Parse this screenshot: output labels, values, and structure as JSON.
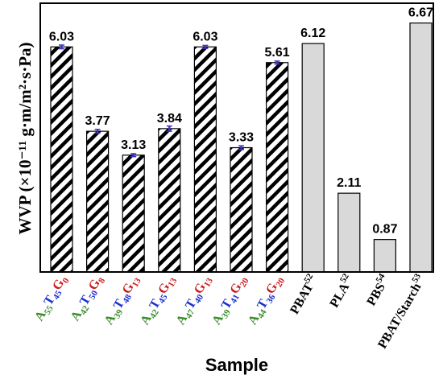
{
  "chart_data": {
    "type": "bar",
    "title": "",
    "ylabel": "WVP (×10⁻¹¹ g·m/m²·s·Pa)",
    "xlabel": "Sample",
    "ylim": [
      0,
      7.2
    ],
    "colors": {
      "A": "#3a8a2a",
      "T": "#1a2fcc",
      "G": "#cc1a1a",
      "error_bar": "#3a33cc",
      "reference_bar": "#d9d9d9",
      "hatch": "#000000"
    },
    "series": [
      {
        "values": [
          6.03,
          3.77,
          3.13,
          3.84,
          6.03,
          3.33,
          5.61,
          6.12,
          2.11,
          0.87,
          6.67
        ],
        "labels": [
          "6.03",
          "3.77",
          "3.13",
          "3.84",
          "6.03",
          "3.33",
          "5.61",
          "6.12",
          "2.11",
          "0.87",
          "6.67"
        ],
        "errors": [
          0.05,
          0.05,
          0.04,
          0.07,
          0.04,
          0.05,
          0.04,
          null,
          null,
          null,
          null
        ],
        "styles": [
          "hatched",
          "hatched",
          "hatched",
          "hatched",
          "hatched",
          "hatched",
          "hatched",
          "gray",
          "gray",
          "gray",
          "gray"
        ]
      }
    ],
    "categories": [
      {
        "parts": [
          {
            "t": "A",
            "c": "A"
          },
          {
            "t": "55",
            "sub": true,
            "c": "A"
          },
          {
            "t": "T",
            "c": "T"
          },
          {
            "t": "45",
            "sub": true,
            "c": "T"
          },
          {
            "t": "G",
            "c": "G"
          },
          {
            "t": "0",
            "sub": true,
            "c": "G"
          }
        ]
      },
      {
        "parts": [
          {
            "t": "A",
            "c": "A"
          },
          {
            "t": "42",
            "sub": true,
            "c": "A"
          },
          {
            "t": "T",
            "c": "T"
          },
          {
            "t": "50",
            "sub": true,
            "c": "T"
          },
          {
            "t": "G",
            "c": "G"
          },
          {
            "t": "8",
            "sub": true,
            "c": "G"
          }
        ]
      },
      {
        "parts": [
          {
            "t": "A",
            "c": "A"
          },
          {
            "t": "39",
            "sub": true,
            "c": "A"
          },
          {
            "t": "T",
            "c": "T"
          },
          {
            "t": "48",
            "sub": true,
            "c": "T"
          },
          {
            "t": "G",
            "c": "G"
          },
          {
            "t": "13",
            "sub": true,
            "c": "G"
          }
        ]
      },
      {
        "parts": [
          {
            "t": "A",
            "c": "A"
          },
          {
            "t": "42",
            "sub": true,
            "c": "A"
          },
          {
            "t": "T",
            "c": "T"
          },
          {
            "t": "45",
            "sub": true,
            "c": "T"
          },
          {
            "t": "G",
            "c": "G"
          },
          {
            "t": "13",
            "sub": true,
            "c": "G"
          }
        ]
      },
      {
        "parts": [
          {
            "t": "A",
            "c": "A"
          },
          {
            "t": "47",
            "sub": true,
            "c": "A"
          },
          {
            "t": "T",
            "c": "T"
          },
          {
            "t": "40",
            "sub": true,
            "c": "T"
          },
          {
            "t": "G",
            "c": "G"
          },
          {
            "t": "13",
            "sub": true,
            "c": "G"
          }
        ]
      },
      {
        "parts": [
          {
            "t": "A",
            "c": "A"
          },
          {
            "t": "39",
            "sub": true,
            "c": "A"
          },
          {
            "t": "T",
            "c": "T"
          },
          {
            "t": "41",
            "sub": true,
            "c": "T"
          },
          {
            "t": "G",
            "c": "G"
          },
          {
            "t": "20",
            "sub": true,
            "c": "G"
          }
        ]
      },
      {
        "parts": [
          {
            "t": "A",
            "c": "A"
          },
          {
            "t": "44",
            "sub": true,
            "c": "A"
          },
          {
            "t": "T",
            "c": "T"
          },
          {
            "t": "36",
            "sub": true,
            "c": "T"
          },
          {
            "t": "G",
            "c": "G"
          },
          {
            "t": "20",
            "sub": true,
            "c": "G"
          }
        ]
      },
      {
        "parts": [
          {
            "t": "PBAT",
            "c": "K"
          },
          {
            "t": "52",
            "sup": true,
            "c": "K"
          }
        ]
      },
      {
        "parts": [
          {
            "t": "PLA",
            "c": "K"
          },
          {
            "t": "52",
            "sup": true,
            "c": "K"
          }
        ]
      },
      {
        "parts": [
          {
            "t": "PBS",
            "c": "K"
          },
          {
            "t": "54",
            "sup": true,
            "c": "K"
          }
        ]
      },
      {
        "parts": [
          {
            "t": "PBAT/Starch",
            "c": "K"
          },
          {
            "t": "53",
            "sup": true,
            "c": "K"
          }
        ]
      }
    ],
    "grid": false,
    "legend": "none"
  }
}
